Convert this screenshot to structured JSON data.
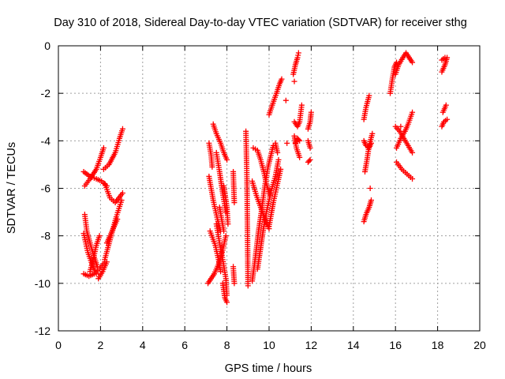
{
  "chart_data": {
    "type": "scatter",
    "title": "Day 310 of 2018, Sidereal Day-to-day VTEC variation (SDTVAR) for receiver sthg",
    "xlabel": "GPS time / hours",
    "ylabel": "SDTVAR / TECUs",
    "xlim": [
      0,
      20
    ],
    "ylim": [
      -12,
      0
    ],
    "xticks": [
      "0",
      "2",
      "4",
      "6",
      "8",
      "10",
      "12",
      "14",
      "16",
      "18",
      "20"
    ],
    "yticks": [
      "0",
      "-2",
      "-4",
      "-6",
      "-8",
      "-10",
      "-12"
    ],
    "grid": true,
    "marker": "+",
    "color": "#ff0000",
    "segments": [
      [
        [
          1.25,
          -5.9
        ],
        [
          1.5,
          -5.6
        ],
        [
          1.8,
          -5.2
        ],
        [
          2.0,
          -4.7
        ],
        [
          2.15,
          -4.3
        ]
      ],
      [
        [
          1.2,
          -5.3
        ],
        [
          1.5,
          -5.5
        ],
        [
          1.8,
          -5.6
        ],
        [
          2.05,
          -5.7
        ],
        [
          2.3,
          -5.9
        ]
      ],
      [
        [
          2.15,
          -5.2
        ],
        [
          2.4,
          -5.0
        ],
        [
          2.7,
          -4.5
        ],
        [
          2.9,
          -3.9
        ],
        [
          3.05,
          -3.5
        ]
      ],
      [
        [
          2.2,
          -5.8
        ],
        [
          2.45,
          -6.4
        ],
        [
          2.7,
          -6.6
        ],
        [
          3.05,
          -6.2
        ]
      ],
      [
        [
          2.2,
          -9.0
        ],
        [
          2.5,
          -8.0
        ],
        [
          2.75,
          -7.2
        ],
        [
          3.0,
          -6.5
        ]
      ],
      [
        [
          2.3,
          -8.3
        ],
        [
          2.6,
          -7.7
        ],
        [
          2.8,
          -7.3
        ]
      ],
      [
        [
          1.25,
          -7.1
        ],
        [
          1.35,
          -7.8
        ],
        [
          1.5,
          -8.3
        ],
        [
          1.7,
          -8.9
        ],
        [
          1.85,
          -9.3
        ]
      ],
      [
        [
          1.2,
          -7.9
        ],
        [
          1.4,
          -8.7
        ],
        [
          1.6,
          -9.2
        ],
        [
          1.8,
          -9.6
        ]
      ],
      [
        [
          1.2,
          -9.6
        ],
        [
          1.45,
          -9.7
        ],
        [
          1.7,
          -9.6
        ]
      ],
      [
        [
          1.5,
          -9.5
        ],
        [
          1.65,
          -9.0
        ],
        [
          1.8,
          -8.4
        ],
        [
          1.95,
          -8.0
        ]
      ],
      [
        [
          1.7,
          -9.6
        ],
        [
          1.95,
          -9.4
        ],
        [
          2.2,
          -9.1
        ]
      ],
      [
        [
          1.9,
          -9.8
        ],
        [
          2.1,
          -9.5
        ],
        [
          2.3,
          -9.1
        ]
      ],
      [
        [
          7.2,
          -7.8
        ],
        [
          7.45,
          -8.4
        ],
        [
          7.6,
          -9.0
        ],
        [
          7.7,
          -9.5
        ]
      ],
      [
        [
          7.15,
          -5.5
        ],
        [
          7.35,
          -6.5
        ],
        [
          7.55,
          -7.3
        ],
        [
          7.7,
          -7.8
        ]
      ],
      [
        [
          7.1,
          -10.0
        ],
        [
          7.4,
          -9.6
        ],
        [
          7.6,
          -9.2
        ],
        [
          7.8,
          -8.6
        ],
        [
          7.95,
          -8.0
        ]
      ],
      [
        [
          7.15,
          -4.1
        ],
        [
          7.25,
          -4.6
        ],
        [
          7.3,
          -5.1
        ]
      ],
      [
        [
          7.5,
          -4.5
        ],
        [
          7.65,
          -5.3
        ],
        [
          7.8,
          -6.2
        ],
        [
          7.95,
          -7.0
        ]
      ],
      [
        [
          7.5,
          -7.5
        ],
        [
          7.65,
          -8.3
        ],
        [
          7.8,
          -9.0
        ],
        [
          7.95,
          -9.8
        ],
        [
          8.0,
          -10.5
        ]
      ],
      [
        [
          7.8,
          -10.0
        ],
        [
          7.9,
          -10.6
        ],
        [
          8.0,
          -10.8
        ]
      ],
      [
        [
          7.65,
          -6.8
        ],
        [
          7.75,
          -7.3
        ],
        [
          7.85,
          -7.8
        ]
      ],
      [
        [
          7.85,
          -5.9
        ],
        [
          8.0,
          -6.8
        ],
        [
          8.05,
          -7.5
        ]
      ],
      [
        [
          7.35,
          -3.3
        ],
        [
          7.5,
          -3.7
        ],
        [
          7.7,
          -4.1
        ],
        [
          7.85,
          -4.5
        ],
        [
          8.0,
          -4.8
        ]
      ],
      [
        [
          8.3,
          -5.3
        ],
        [
          8.35,
          -6.6
        ]
      ],
      [
        [
          8.3,
          -9.3
        ],
        [
          8.35,
          -10.0
        ]
      ],
      [
        [
          8.9,
          -3.6
        ],
        [
          8.95,
          -5.6
        ],
        [
          9.0,
          -10.1
        ]
      ],
      [
        [
          9.2,
          -9.9
        ],
        [
          9.35,
          -8.9
        ],
        [
          9.5,
          -7.8
        ],
        [
          9.65,
          -6.9
        ],
        [
          9.8,
          -5.9
        ],
        [
          9.95,
          -5.1
        ],
        [
          10.2,
          -4.2
        ]
      ],
      [
        [
          9.2,
          -5.7
        ],
        [
          9.4,
          -6.3
        ],
        [
          9.6,
          -6.8
        ],
        [
          9.8,
          -7.3
        ],
        [
          10.0,
          -7.7
        ]
      ],
      [
        [
          9.25,
          -4.3
        ],
        [
          9.45,
          -4.4
        ],
        [
          9.6,
          -4.8
        ],
        [
          9.75,
          -5.3
        ],
        [
          9.9,
          -5.9
        ],
        [
          10.05,
          -6.3
        ]
      ],
      [
        [
          9.45,
          -9.4
        ],
        [
          9.6,
          -8.5
        ],
        [
          9.75,
          -7.6
        ],
        [
          9.9,
          -6.9
        ],
        [
          10.1,
          -6.1
        ],
        [
          10.3,
          -5.5
        ],
        [
          10.45,
          -4.8
        ]
      ],
      [
        [
          10.0,
          -7.6
        ],
        [
          10.2,
          -6.6
        ],
        [
          10.4,
          -5.8
        ],
        [
          10.55,
          -5.2
        ]
      ],
      [
        [
          10.0,
          -2.9
        ],
        [
          10.15,
          -2.5
        ],
        [
          10.35,
          -2.0
        ],
        [
          10.5,
          -1.6
        ],
        [
          10.6,
          -1.4
        ]
      ],
      [
        [
          10.3,
          -4.1
        ],
        [
          10.4,
          -4.5
        ]
      ],
      [
        [
          10.8,
          -2.3
        ]
      ],
      [
        [
          10.85,
          -4.1
        ]
      ],
      [
        [
          11.15,
          -1.2
        ],
        [
          11.25,
          -0.8
        ],
        [
          11.35,
          -0.5
        ],
        [
          11.4,
          -0.3
        ]
      ],
      [
        [
          11.2,
          -1.5
        ]
      ],
      [
        [
          11.2,
          -3.2
        ],
        [
          11.35,
          -3.4
        ],
        [
          11.45,
          -3.2
        ],
        [
          11.55,
          -2.5
        ]
      ],
      [
        [
          11.2,
          -3.8
        ],
        [
          11.3,
          -4.3
        ],
        [
          11.45,
          -4.7
        ]
      ],
      [
        [
          11.25,
          -4.1
        ],
        [
          11.35,
          -3.9
        ],
        [
          11.45,
          -4.0
        ]
      ],
      [
        [
          11.85,
          -3.5
        ],
        [
          11.95,
          -3.2
        ],
        [
          12.0,
          -2.8
        ]
      ],
      [
        [
          11.85,
          -4.0
        ],
        [
          11.95,
          -4.3
        ]
      ],
      [
        [
          11.85,
          -4.9
        ],
        [
          11.95,
          -4.8
        ]
      ],
      [
        [
          14.5,
          -3.1
        ],
        [
          14.6,
          -2.6
        ],
        [
          14.75,
          -2.1
        ]
      ],
      [
        [
          14.5,
          -4.0
        ],
        [
          14.6,
          -4.2
        ],
        [
          14.75,
          -4.3
        ],
        [
          14.85,
          -4.1
        ]
      ],
      [
        [
          14.55,
          -5.3
        ],
        [
          14.65,
          -4.8
        ],
        [
          14.75,
          -4.2
        ],
        [
          14.9,
          -3.7
        ]
      ],
      [
        [
          14.8,
          -6.0
        ]
      ],
      [
        [
          14.5,
          -7.4
        ],
        [
          14.6,
          -7.1
        ],
        [
          14.75,
          -6.8
        ],
        [
          14.85,
          -6.5
        ]
      ],
      [
        [
          15.75,
          -2.0
        ],
        [
          15.85,
          -1.4
        ],
        [
          15.95,
          -0.9
        ],
        [
          16.05,
          -0.7
        ]
      ],
      [
        [
          16.0,
          -1.2
        ],
        [
          16.15,
          -0.8
        ],
        [
          16.35,
          -0.5
        ],
        [
          16.5,
          -0.3
        ],
        [
          16.65,
          -0.5
        ],
        [
          16.8,
          -0.7
        ]
      ],
      [
        [
          16.05,
          -4.9
        ],
        [
          16.3,
          -5.2
        ],
        [
          16.55,
          -5.4
        ],
        [
          16.8,
          -5.6
        ]
      ],
      [
        [
          16.0,
          -3.4
        ],
        [
          16.2,
          -3.6
        ],
        [
          16.4,
          -3.9
        ],
        [
          16.6,
          -4.2
        ],
        [
          16.8,
          -4.5
        ]
      ],
      [
        [
          16.05,
          -4.3
        ],
        [
          16.25,
          -3.9
        ],
        [
          16.45,
          -3.6
        ],
        [
          16.6,
          -3.3
        ],
        [
          16.8,
          -2.8
        ]
      ],
      [
        [
          16.25,
          -3.4
        ]
      ],
      [
        [
          18.2,
          -3.4
        ],
        [
          18.3,
          -3.2
        ],
        [
          18.45,
          -3.1
        ]
      ],
      [
        [
          18.25,
          -2.8
        ],
        [
          18.4,
          -2.5
        ]
      ],
      [
        [
          18.2,
          -1.1
        ],
        [
          18.35,
          -0.8
        ],
        [
          18.45,
          -0.5
        ]
      ],
      [
        [
          18.2,
          -0.6
        ],
        [
          18.35,
          -0.5
        ]
      ]
    ]
  }
}
